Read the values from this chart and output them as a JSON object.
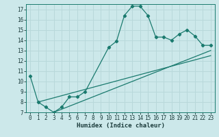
{
  "xlabel": "Humidex (Indice chaleur)",
  "ylabel": "",
  "background_color": "#cce8ea",
  "grid_color": "#b8d8da",
  "line_color": "#1a7a6e",
  "xlim": [
    -0.5,
    23.5
  ],
  "ylim": [
    7,
    17.5
  ],
  "yticks": [
    7,
    8,
    9,
    10,
    11,
    12,
    13,
    14,
    15,
    16,
    17
  ],
  "xticks": [
    0,
    1,
    2,
    3,
    4,
    5,
    6,
    7,
    8,
    9,
    10,
    11,
    12,
    13,
    14,
    15,
    16,
    17,
    18,
    19,
    20,
    21,
    22,
    23
  ],
  "curve1_x": [
    0,
    1,
    2,
    3,
    4,
    5,
    6,
    7,
    10,
    11,
    12,
    13,
    14,
    15,
    16,
    17,
    18,
    19,
    20,
    21,
    22,
    23
  ],
  "curve1_y": [
    10.5,
    8.0,
    7.5,
    7.0,
    7.5,
    8.5,
    8.5,
    9.0,
    13.3,
    13.9,
    16.4,
    17.3,
    17.3,
    16.4,
    14.3,
    14.3,
    14.0,
    14.6,
    15.0,
    14.4,
    13.5,
    13.5
  ],
  "line1_x": [
    1,
    23
  ],
  "line1_y": [
    8.0,
    12.5
  ],
  "line2_x": [
    3,
    23
  ],
  "line2_y": [
    7.0,
    13.0
  ],
  "tick_fontsize": 5.5,
  "xlabel_fontsize": 6.5
}
